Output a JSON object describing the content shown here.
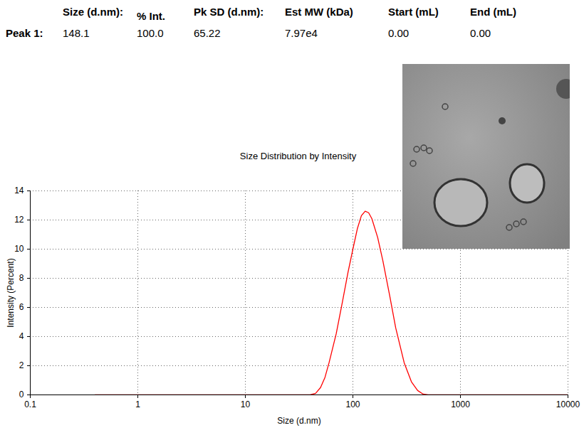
{
  "table": {
    "columns": [
      "Size (d.nm):",
      "% Int.",
      "Pk SD (d.nm):",
      "Est MW (kDa)",
      "Start (mL)",
      "End (mL)"
    ],
    "rows": [
      {
        "label": "Peak 1:",
        "cells": [
          "148.1",
          "100.0",
          "65.22",
          "7.97e4",
          "0.00",
          "0.00"
        ]
      }
    ]
  },
  "chart_data": {
    "type": "line",
    "title": "Size Distribution by Intensity",
    "x_label": "Size (d.nm)",
    "y_label": "Intensity (Percent)",
    "x": [
      0.4,
      1,
      10,
      40,
      45,
      50,
      55,
      60,
      70,
      80,
      90,
      100,
      110,
      120,
      130,
      140,
      150,
      170,
      190,
      220,
      250,
      300,
      350,
      400,
      450,
      500,
      1000,
      10000
    ],
    "values": [
      0,
      0,
      0,
      0,
      0.1,
      0.5,
      1.2,
      2.2,
      4.2,
      6.4,
      8.4,
      10.0,
      11.4,
      12.3,
      12.6,
      12.5,
      12.1,
      10.8,
      9.2,
      6.8,
      4.6,
      2.2,
      0.9,
      0.3,
      0.05,
      0,
      0,
      0
    ],
    "color": "#ff0000",
    "log": "x",
    "xlim": [
      0.1,
      10000
    ],
    "xticks": [
      0.1,
      1,
      10,
      100,
      1000,
      10000
    ],
    "ylim": [
      0,
      14
    ],
    "yticks": [
      0,
      2,
      4,
      6,
      8,
      10,
      12,
      14
    ],
    "grid": true
  }
}
